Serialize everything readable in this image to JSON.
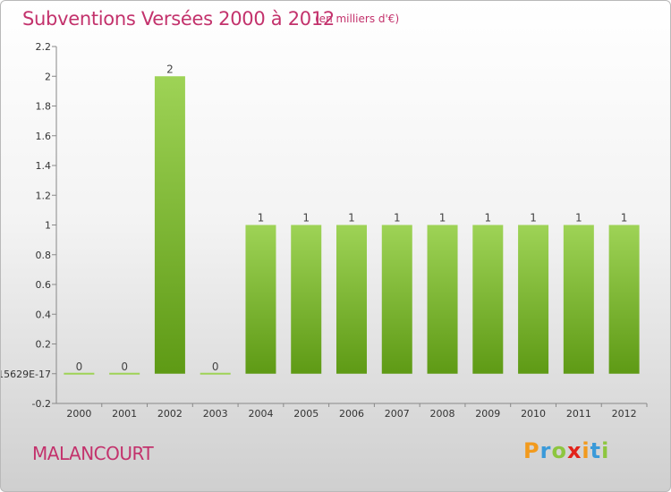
{
  "header": {
    "title": "Subventions Versées 2000 à 2012",
    "unit": "(en milliers d'€)"
  },
  "footer": {
    "city": "MALANCOURT",
    "logo_letters": [
      "P",
      "r",
      "o",
      "x",
      "i",
      "t",
      "i"
    ],
    "logo_colors": [
      "#f29a1d",
      "#3a9ad9",
      "#8dc63f",
      "#e2231a",
      "#f29a1d",
      "#3a9ad9",
      "#8dc63f"
    ]
  },
  "chart_data": {
    "type": "bar",
    "title": "Subventions Versées 2000 à 2012",
    "unit": "(en milliers d'€)",
    "categories": [
      "2000",
      "2001",
      "2002",
      "2003",
      "2004",
      "2005",
      "2006",
      "2007",
      "2008",
      "2009",
      "2010",
      "2011",
      "2012"
    ],
    "values": [
      0,
      0,
      2,
      0,
      1,
      1,
      1,
      1,
      1,
      1,
      1,
      1,
      1
    ],
    "data_labels": [
      "0",
      "0",
      "2",
      "0",
      "1",
      "1",
      "1",
      "1",
      "1",
      "1",
      "1",
      "1",
      "1"
    ],
    "ylim": [
      -0.2,
      2.2
    ],
    "y_ticks": [
      {
        "value": 2.2,
        "label": "2.2"
      },
      {
        "value": 2,
        "label": "2"
      },
      {
        "value": 1.8,
        "label": "1.8"
      },
      {
        "value": 1.6,
        "label": "1.6"
      },
      {
        "value": 1.4,
        "label": "1.4"
      },
      {
        "value": 1.2,
        "label": "1.2"
      },
      {
        "value": 1,
        "label": "1"
      },
      {
        "value": 0.8,
        "label": "0.8"
      },
      {
        "value": 0.6,
        "label": "0.6"
      },
      {
        "value": 0.4,
        "label": "0.4"
      },
      {
        "value": 0.2,
        "label": "0.2"
      },
      {
        "value": 0,
        "label": "15629E-17"
      },
      {
        "value": -0.2,
        "label": "-0.2"
      }
    ],
    "grid": false,
    "colors": {
      "bar_top": "#9ed356",
      "bar_bottom": "#5e9a15",
      "axis": "#888888"
    }
  }
}
